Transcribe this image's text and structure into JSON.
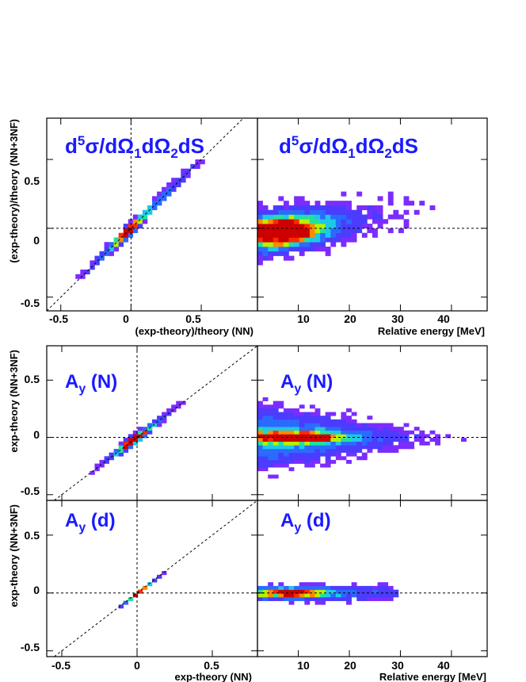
{
  "figure": {
    "colors": {
      "frame": "#000000",
      "guide": "#000000",
      "label": "#1a1aff",
      "palette": [
        "#7b2cff",
        "#4b3cff",
        "#2a6bff",
        "#1ec8e6",
        "#22e0a0",
        "#b8f000",
        "#ff8a00",
        "#ff2a00",
        "#cc0000"
      ]
    }
  },
  "panels": [
    {
      "id": "xs-vs-nn",
      "label": {
        "main": "d",
        "sup": "5",
        "rest": "σ/dΩ",
        "sub1": "1",
        "mid": "dΩ",
        "sub2": "2",
        "tail": "dS"
      },
      "ylabel": "(exp-theory)/theory (NN+3NF)",
      "xlabel": "(exp-theory)/theory (NN)",
      "xticks": [
        "-0.5",
        "0",
        "0.5"
      ],
      "yticks": [
        "0.5",
        "0",
        "-0.5"
      ]
    },
    {
      "id": "xs-vs-erel",
      "label": {
        "main": "d",
        "sup": "5",
        "rest": "σ/dΩ",
        "sub1": "1",
        "mid": "dΩ",
        "sub2": "2",
        "tail": "dS"
      },
      "xlabel": "Relative energy [MeV]",
      "xticks": [
        "10",
        "20",
        "30",
        "40"
      ]
    },
    {
      "id": "ayn-vs-nn",
      "label": {
        "main": "A",
        "sub": "y",
        "rest": " (N)"
      },
      "ylabel": "exp-theory (NN+3NF)",
      "yticks": [
        "0.5",
        "0",
        "-0.5"
      ]
    },
    {
      "id": "ayn-vs-erel",
      "label": {
        "main": "A",
        "sub": "y",
        "rest": " (N)"
      }
    },
    {
      "id": "ayd-vs-nn",
      "label": {
        "main": "A",
        "sub": "y",
        "rest": " (d)"
      },
      "ylabel": "exp-theory (NN+3NF)",
      "xlabel": "exp-theory (NN)",
      "xticks": [
        "-0.5",
        "0",
        "0.5"
      ],
      "yticks": [
        "0.5",
        "0",
        "-0.5"
      ]
    },
    {
      "id": "ayd-vs-erel",
      "label": {
        "main": "A",
        "sub": "y",
        "rest": " (d)"
      },
      "xlabel": "Relative energy [MeV]",
      "xticks": [
        "10",
        "20",
        "30",
        "40"
      ]
    }
  ],
  "chart_data": [
    {
      "type": "heatmap",
      "title": "d5σ/dΩ1dΩ2dS",
      "xlabel": "(exp-theory)/theory (NN)",
      "ylabel": "(exp-theory)/theory (NN+3NF)",
      "xlim": [
        -0.6,
        0.9
      ],
      "ylim": [
        -0.6,
        0.8
      ],
      "reference_lines": [
        "y=x",
        "x=0",
        "y=0"
      ],
      "distribution": {
        "shape": "diagonal-band",
        "center": [
          0.05,
          0.02
        ],
        "x_range": [
          -0.55,
          0.7
        ],
        "spread": 0.03,
        "peak_at": [
          0.0,
          -0.05
        ]
      }
    },
    {
      "type": "heatmap",
      "title": "d5σ/dΩ1dΩ2dS",
      "xlabel": "Relative energy [MeV]",
      "ylabel": "(exp-theory)/theory (NN+3NF)",
      "xlim": [
        2,
        47
      ],
      "ylim": [
        -0.6,
        0.8
      ],
      "reference_lines": [
        "y=0"
      ],
      "distribution": {
        "shape": "rising-band",
        "x_range": [
          2,
          43
        ],
        "y_center_start": -0.05,
        "y_center_end": 0.2,
        "spread": 0.12,
        "peak_at": [
          7,
          -0.02
        ]
      }
    },
    {
      "type": "heatmap",
      "title": "Ay (N)",
      "xlabel": "exp-theory (NN)",
      "ylabel": "exp-theory (NN+3NF)",
      "xlim": [
        -0.6,
        0.8
      ],
      "ylim": [
        -0.55,
        0.8
      ],
      "reference_lines": [
        "y=x",
        "x=0",
        "y=0"
      ],
      "distribution": {
        "shape": "diagonal-band",
        "center": [
          0.0,
          0.0
        ],
        "x_range": [
          -0.3,
          0.4
        ],
        "spread": 0.03,
        "peak_at": [
          -0.05,
          -0.02
        ]
      }
    },
    {
      "type": "heatmap",
      "title": "Ay (N)",
      "xlabel": "Relative energy [MeV]",
      "ylabel": "exp-theory (NN+3NF)",
      "xlim": [
        2,
        47
      ],
      "ylim": [
        -0.55,
        0.8
      ],
      "reference_lines": [
        "y=0"
      ],
      "distribution": {
        "shape": "narrowing-band",
        "x_range": [
          2,
          46
        ],
        "y_center": 0.0,
        "spread_start": 0.2,
        "spread_end": 0.02,
        "peak_at": [
          10,
          0.0
        ]
      }
    },
    {
      "type": "heatmap",
      "title": "Ay (d)",
      "xlabel": "exp-theory (NN)",
      "ylabel": "exp-theory (NN+3NF)",
      "xlim": [
        -0.6,
        0.8
      ],
      "ylim": [
        -0.55,
        0.8
      ],
      "reference_lines": [
        "y=x",
        "x=0",
        "y=0"
      ],
      "distribution": {
        "shape": "diagonal-band",
        "center": [
          0.0,
          0.0
        ],
        "x_range": [
          -0.3,
          0.2
        ],
        "spread": 0.01,
        "peak_at": [
          0.0,
          0.0
        ]
      }
    },
    {
      "type": "heatmap",
      "title": "Ay (d)",
      "xlabel": "Relative energy [MeV]",
      "ylabel": "exp-theory (NN+3NF)",
      "xlim": [
        2,
        47
      ],
      "ylim": [
        -0.55,
        0.8
      ],
      "reference_lines": [
        "y=0"
      ],
      "distribution": {
        "shape": "flat-band",
        "x_range": [
          2,
          30
        ],
        "y_center": 0.0,
        "spread": 0.05,
        "peak_at": [
          10,
          0.0
        ]
      }
    }
  ]
}
